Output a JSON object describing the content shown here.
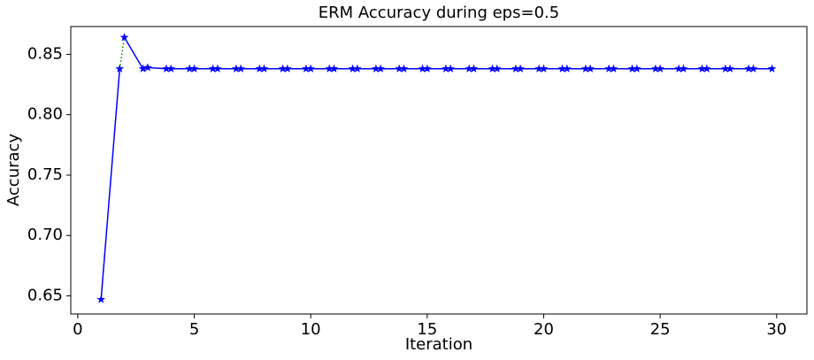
{
  "chart_data": {
    "type": "line",
    "title": "ERM Accuracy during eps=0.5",
    "x_label": "Iteration",
    "y_label": "Accuracy",
    "xlim": [
      -0.3,
      31.3
    ],
    "ylim": [
      0.635,
      0.873
    ],
    "xticks": [
      0,
      5,
      10,
      15,
      20,
      25,
      30
    ],
    "yticks": [
      {
        "value": 0.65,
        "label": "0.65"
      },
      {
        "value": 0.7,
        "label": "0.70"
      },
      {
        "value": 0.75,
        "label": "0.75"
      },
      {
        "value": 0.8,
        "label": "0.80"
      },
      {
        "value": 0.85,
        "label": "0.85"
      }
    ],
    "grid": false,
    "series": [
      {
        "color": "#0000ff",
        "linestyle": "solid",
        "marker": "star",
        "x": [
          1,
          1.8
        ],
        "values": [
          0.647,
          0.838
        ]
      },
      {
        "color": "#008000",
        "linestyle": "dotted",
        "marker": "none",
        "x": [
          1.8,
          2
        ],
        "values": [
          0.838,
          0.864
        ]
      },
      {
        "color": "#0000ff",
        "linestyle": "solid",
        "marker": "star",
        "x": [
          2,
          2.8,
          3,
          3.8,
          4,
          4.8,
          5,
          5.8,
          6,
          6.8,
          7,
          7.8,
          8,
          8.8,
          9,
          9.8,
          10,
          10.8,
          11,
          11.8,
          12,
          12.8,
          13,
          13.8,
          14,
          14.8,
          15,
          15.8,
          16,
          16.8,
          17,
          17.8,
          18,
          18.8,
          19,
          19.8,
          20,
          20.8,
          21,
          21.8,
          22,
          22.8,
          23,
          23.8,
          24,
          24.8,
          25,
          25.8,
          26,
          26.8,
          27,
          27.8,
          28,
          28.8,
          29,
          29.8
        ],
        "values": [
          0.864,
          0.838,
          0.839,
          0.838,
          0.838,
          0.838,
          0.838,
          0.838,
          0.838,
          0.838,
          0.838,
          0.838,
          0.838,
          0.838,
          0.838,
          0.838,
          0.838,
          0.838,
          0.838,
          0.838,
          0.838,
          0.838,
          0.838,
          0.838,
          0.838,
          0.838,
          0.838,
          0.838,
          0.838,
          0.838,
          0.838,
          0.838,
          0.838,
          0.838,
          0.838,
          0.838,
          0.838,
          0.838,
          0.838,
          0.838,
          0.838,
          0.838,
          0.838,
          0.838,
          0.838,
          0.838,
          0.838,
          0.838,
          0.838,
          0.838,
          0.838,
          0.838,
          0.838,
          0.838,
          0.838,
          0.838
        ]
      }
    ]
  }
}
